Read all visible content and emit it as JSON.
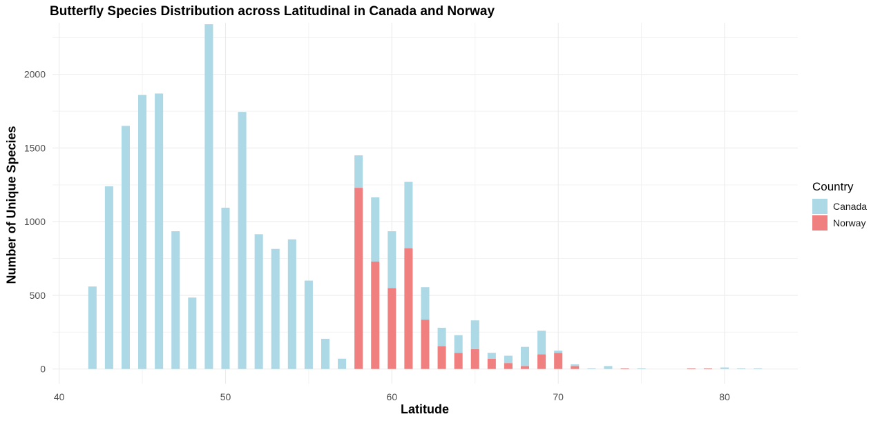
{
  "chart_data": {
    "type": "bar",
    "stacked": true,
    "title": "Butterfly Species Distribution across Latitudinal in Canada and Norway",
    "xlabel": "Latitude",
    "ylabel": "Number of Unique Species",
    "xlim": [
      39.6,
      84.4
    ],
    "ylim": [
      -100,
      2350
    ],
    "xticks": [
      40,
      50,
      60,
      70,
      80
    ],
    "yticks": [
      0,
      500,
      1000,
      1500,
      2000
    ],
    "grid": true,
    "legend": {
      "title": "Country",
      "placement": "right",
      "entries": [
        "Canada",
        "Norway"
      ]
    },
    "colors": {
      "Canada": "#add8e6",
      "Norway": "#f08080"
    },
    "x": [
      42,
      43,
      44,
      45,
      46,
      47,
      48,
      49,
      50,
      51,
      52,
      53,
      54,
      55,
      56,
      57,
      58,
      59,
      60,
      61,
      62,
      63,
      64,
      65,
      66,
      67,
      68,
      69,
      70,
      71,
      72,
      73,
      74,
      75,
      78,
      79,
      80,
      81,
      82
    ],
    "series": [
      {
        "name": "Norway",
        "values": [
          0,
          0,
          0,
          0,
          0,
          0,
          0,
          0,
          0,
          0,
          0,
          0,
          0,
          0,
          0,
          0,
          1230,
          730,
          550,
          820,
          335,
          155,
          110,
          135,
          70,
          40,
          20,
          100,
          110,
          20,
          0,
          0,
          5,
          0,
          5,
          5,
          0,
          0,
          0
        ]
      },
      {
        "name": "Canada",
        "values": [
          560,
          1240,
          1650,
          1860,
          1870,
          935,
          485,
          2340,
          1095,
          1745,
          915,
          815,
          880,
          600,
          205,
          70,
          220,
          435,
          385,
          450,
          220,
          125,
          120,
          195,
          40,
          50,
          130,
          160,
          15,
          12,
          5,
          20,
          0,
          5,
          0,
          0,
          10,
          5,
          5
        ]
      }
    ]
  }
}
